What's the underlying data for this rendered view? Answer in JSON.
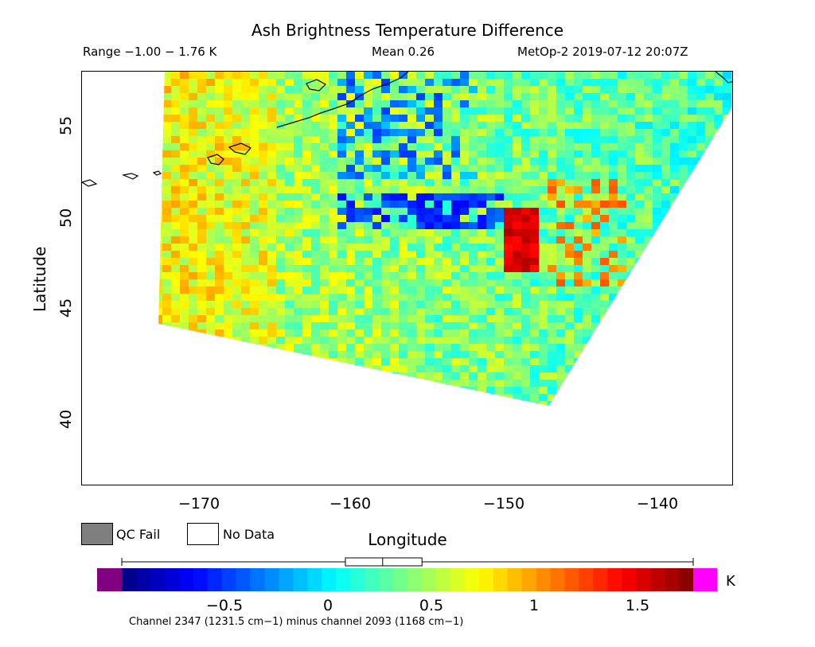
{
  "title": "Ash Brightness Temperature Difference",
  "header": {
    "range": "Range −1.00 − 1.76 K",
    "mean": "Mean 0.26",
    "satellite_time": "MetOp-2 2019-07-12 20:07Z"
  },
  "chart_data": {
    "type": "heatmap",
    "title": "Ash Brightness Temperature Difference",
    "xlabel": "Longitude",
    "ylabel": "Latitude",
    "xlim": [
      -177.7,
      -135.1
    ],
    "ylim": [
      35,
      57.7
    ],
    "x_ticks": [
      -170,
      -160,
      -150,
      -140
    ],
    "x_tick_labels": [
      "−170",
      "−160",
      "−150",
      "−140"
    ],
    "y_ticks": [
      40,
      45,
      50,
      55
    ],
    "y_tick_labels": [
      "40",
      "45",
      "50",
      "55"
    ],
    "value_range": [
      -1.0,
      1.76
    ],
    "mean": 0.26,
    "units": "K",
    "colormap": "jet",
    "swath_corners_lonlat": [
      [
        -172.3,
        57.7
      ],
      [
        -133.8,
        57.7
      ],
      [
        -147.2,
        39.4
      ],
      [
        -172.7,
        43.9
      ]
    ],
    "features": [
      {
        "type": "hotspot",
        "lon": [
          -150.2,
          -147.6
        ],
        "lat": [
          46.8,
          50.2
        ],
        "value": 1.5
      },
      {
        "type": "low_band",
        "lon": [
          -161,
          -150
        ],
        "lat": [
          49,
          51
        ],
        "value": -0.5
      },
      {
        "type": "low_region",
        "lon": [
          -161,
          -152
        ],
        "lat": [
          52,
          57.7
        ],
        "value": -0.3
      }
    ]
  },
  "legend": {
    "qc_fail_label": "QC Fail",
    "no_data_label": "No Data",
    "qc_fail_color": "#7f7f7f",
    "no_data_color": "#ffffff"
  },
  "colorbar": {
    "vmin": -1.0,
    "vmax": 1.76,
    "under_color": "#800080",
    "over_color": "#ff00ff",
    "ticks": [
      -0.5,
      0,
      0.5,
      1,
      1.5
    ],
    "tick_labels": [
      "−0.5",
      "0",
      "0.5",
      "1",
      "1.5"
    ],
    "unit": "K",
    "boxplot": {
      "min": -1.0,
      "q1": 0.08,
      "median": 0.26,
      "q3": 0.45,
      "max": 1.76
    }
  },
  "footnote": "Channel 2347 (1231.5 cm−1) minus channel 2093 (1168 cm−1)"
}
